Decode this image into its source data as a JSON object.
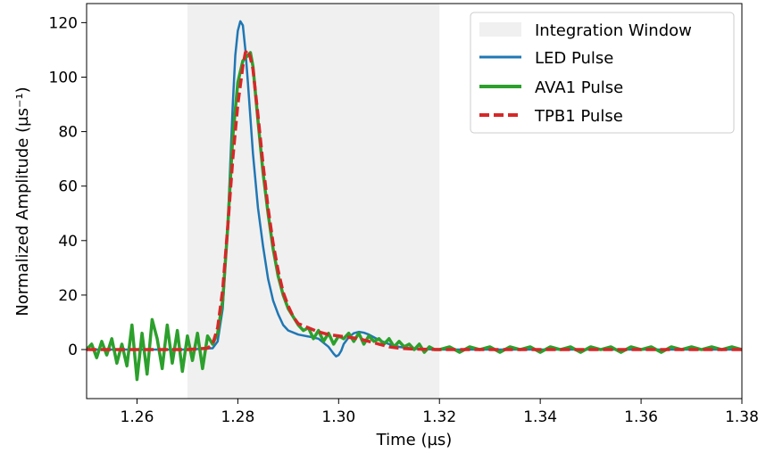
{
  "chart_data": {
    "type": "line",
    "title": "",
    "xlabel": "Time (µs)",
    "ylabel": "Normalized Amplitude (µs⁻¹)",
    "xlim": [
      1.25,
      1.38
    ],
    "ylim": [
      -18,
      127
    ],
    "x_ticks": [
      1.26,
      1.28,
      1.3,
      1.32,
      1.34,
      1.36,
      1.38
    ],
    "x_tick_labels": [
      "1.26",
      "1.28",
      "1.30",
      "1.32",
      "1.34",
      "1.36",
      "1.38"
    ],
    "y_ticks": [
      0,
      20,
      40,
      60,
      80,
      100,
      120
    ],
    "y_tick_labels": [
      "0",
      "20",
      "40",
      "60",
      "80",
      "100",
      "120"
    ],
    "grid": false,
    "legend_position": "top-right",
    "integration_window": {
      "name": "Integration Window",
      "x_range": [
        1.27,
        1.32
      ],
      "color": "#f0f0f0"
    },
    "series": [
      {
        "name": "LED Pulse",
        "color": "#1f77b4",
        "style": "solid",
        "x": [
          1.25,
          1.26,
          1.27,
          1.275,
          1.276,
          1.277,
          1.278,
          1.2785,
          1.279,
          1.2795,
          1.28,
          1.2805,
          1.281,
          1.2815,
          1.282,
          1.2825,
          1.283,
          1.284,
          1.285,
          1.286,
          1.287,
          1.288,
          1.289,
          1.29,
          1.292,
          1.294,
          1.296,
          1.298,
          1.299,
          1.2995,
          1.3,
          1.3005,
          1.301,
          1.302,
          1.303,
          1.304,
          1.305,
          1.306,
          1.307,
          1.308,
          1.31,
          1.312,
          1.315,
          1.32,
          1.33,
          1.34,
          1.35,
          1.36,
          1.37,
          1.38
        ],
        "y": [
          0,
          0,
          0,
          0.5,
          3,
          15,
          45,
          68,
          90,
          108,
          117,
          120.5,
          119,
          110,
          98,
          85,
          72,
          52,
          38,
          26,
          18,
          13,
          9,
          7,
          5.5,
          4.8,
          4,
          1,
          -1.5,
          -2.5,
          -2,
          -0.5,
          2,
          4.5,
          6,
          6.5,
          6.2,
          5.5,
          4.5,
          3.5,
          2,
          1,
          0.3,
          0,
          0,
          0,
          0,
          0,
          0,
          0
        ]
      },
      {
        "name": "AVA1 Pulse",
        "color": "#2ca02c",
        "style": "solid",
        "x": [
          1.25,
          1.251,
          1.252,
          1.253,
          1.254,
          1.255,
          1.256,
          1.257,
          1.258,
          1.259,
          1.26,
          1.261,
          1.262,
          1.263,
          1.264,
          1.265,
          1.266,
          1.267,
          1.268,
          1.269,
          1.27,
          1.271,
          1.272,
          1.273,
          1.274,
          1.275,
          1.276,
          1.277,
          1.278,
          1.279,
          1.28,
          1.281,
          1.282,
          1.2825,
          1.283,
          1.284,
          1.285,
          1.286,
          1.287,
          1.288,
          1.289,
          1.29,
          1.291,
          1.292,
          1.293,
          1.294,
          1.295,
          1.296,
          1.297,
          1.298,
          1.299,
          1.3,
          1.301,
          1.302,
          1.303,
          1.304,
          1.305,
          1.306,
          1.307,
          1.308,
          1.309,
          1.31,
          1.311,
          1.312,
          1.313,
          1.314,
          1.315,
          1.316,
          1.317,
          1.318,
          1.319,
          1.32,
          1.322,
          1.324,
          1.326,
          1.328,
          1.33,
          1.332,
          1.334,
          1.336,
          1.338,
          1.34,
          1.342,
          1.344,
          1.346,
          1.348,
          1.35,
          1.352,
          1.354,
          1.356,
          1.358,
          1.36,
          1.362,
          1.364,
          1.366,
          1.368,
          1.37,
          1.372,
          1.374,
          1.376,
          1.378,
          1.38
        ],
        "y": [
          0,
          2,
          -3,
          3,
          -2,
          4,
          -5,
          2,
          -6,
          9,
          -11,
          6,
          -9,
          11,
          4,
          -7,
          9,
          -5,
          7,
          -8,
          5,
          -4,
          6,
          -7,
          5,
          2,
          6,
          18,
          45,
          78,
          98,
          106,
          108,
          109,
          104,
          84,
          65,
          50,
          37,
          27,
          20,
          15,
          12,
          9,
          7,
          8,
          4,
          7,
          3,
          6,
          2,
          5,
          4,
          6,
          3,
          6,
          2,
          5,
          3,
          4,
          2,
          4,
          1,
          3,
          1,
          2,
          0,
          2,
          -1,
          1,
          0,
          0,
          1,
          -1,
          1,
          0,
          1,
          -1,
          1,
          0,
          1,
          -1,
          1,
          0,
          1,
          -1,
          1,
          0,
          1,
          -1,
          1,
          0,
          1,
          -1,
          1,
          0,
          1,
          0,
          1,
          0,
          1,
          0
        ]
      },
      {
        "name": "TPB1 Pulse",
        "color": "#d62728",
        "style": "dashed",
        "x": [
          1.25,
          1.26,
          1.27,
          1.274,
          1.275,
          1.276,
          1.277,
          1.278,
          1.279,
          1.28,
          1.281,
          1.2815,
          1.282,
          1.2825,
          1.283,
          1.284,
          1.285,
          1.286,
          1.287,
          1.288,
          1.289,
          1.29,
          1.291,
          1.292,
          1.294,
          1.296,
          1.298,
          1.3,
          1.302,
          1.304,
          1.306,
          1.308,
          1.31,
          1.312,
          1.315,
          1.32,
          1.33,
          1.34,
          1.35,
          1.36,
          1.37,
          1.38
        ],
        "y": [
          0,
          0,
          0,
          0.5,
          2,
          8,
          22,
          45,
          70,
          90,
          104,
          109,
          110,
          107,
          103,
          86,
          68,
          52,
          39,
          29,
          21,
          16,
          12,
          9.5,
          8,
          6.5,
          5.5,
          5,
          4.5,
          4,
          3,
          2,
          1,
          0.5,
          0.2,
          0,
          0,
          0,
          0,
          0,
          0,
          0
        ]
      }
    ]
  }
}
